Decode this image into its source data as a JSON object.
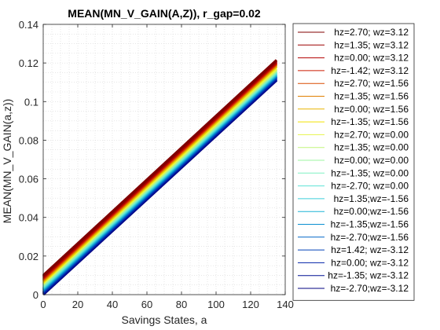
{
  "chart_data": {
    "type": "line",
    "title": "MEAN(MN_V_GAIN(A,Z)), r_gap=0.02",
    "xlabel": "Savings States, a",
    "ylabel": "MEAN(MN_V_GAIN(a,z))",
    "xlim": [
      0,
      140
    ],
    "ylim": [
      0,
      0.14
    ],
    "xticks": [
      "0",
      "20",
      "40",
      "60",
      "80",
      "100",
      "120",
      "140"
    ],
    "yticks": [
      "0",
      "0.02",
      "0.04",
      "0.06",
      "0.08",
      "0.1",
      "0.12",
      "0.14"
    ],
    "grid": "minor-dotted",
    "legend_position": "outside-right",
    "x_range": [
      0,
      135
    ],
    "series": [
      {
        "name": "hz=2.70; wz=3.12",
        "color": "#800000",
        "values": [
          0.01,
          0.1215
        ]
      },
      {
        "name": "hz=1.35; wz=3.12",
        "color": "#9c0000",
        "values": [
          0.0095,
          0.121
        ]
      },
      {
        "name": "hz=0.00; wz=3.12",
        "color": "#b30000",
        "values": [
          0.009,
          0.1205
        ]
      },
      {
        "name": "hz=-1.42; wz=3.12",
        "color": "#cc1a00",
        "values": [
          0.0085,
          0.12
        ]
      },
      {
        "name": "hz=2.70; wz=1.56",
        "color": "#d94a00",
        "values": [
          0.008,
          0.1195
        ]
      },
      {
        "name": "hz=1.35; wz=1.56",
        "color": "#e07f00",
        "values": [
          0.0075,
          0.119
        ]
      },
      {
        "name": "hz=0.00; wz=1.56",
        "color": "#e8b400",
        "values": [
          0.007,
          0.1185
        ]
      },
      {
        "name": "hz=-1.35; wz=1.56",
        "color": "#f0e000",
        "values": [
          0.0065,
          0.118
        ]
      },
      {
        "name": "hz=2.70; wz=0.00",
        "color": "#e6f54a",
        "values": [
          0.006,
          0.117
        ]
      },
      {
        "name": "hz=1.35; wz=0.00",
        "color": "#c2f57a",
        "values": [
          0.0055,
          0.1165
        ]
      },
      {
        "name": "hz=0.00; wz=0.00",
        "color": "#9ef5a0",
        "values": [
          0.005,
          0.116
        ]
      },
      {
        "name": "hz=-1.35; wz=0.00",
        "color": "#7ef0c2",
        "values": [
          0.0045,
          0.1155
        ]
      },
      {
        "name": "hz=-2.70; wz=0.00",
        "color": "#5ee3d6",
        "values": [
          0.004,
          0.115
        ]
      },
      {
        "name": "hz=1.35;wz=-1.56",
        "color": "#3ccfd9",
        "values": [
          0.0035,
          0.1145
        ]
      },
      {
        "name": "hz=0.00;wz=-1.56",
        "color": "#1fb4d6",
        "values": [
          0.003,
          0.114
        ]
      },
      {
        "name": "hz=-1.35;wz=-1.56",
        "color": "#0a8fd0",
        "values": [
          0.0025,
          0.1135
        ]
      },
      {
        "name": "hz=-2.70;wz=-1.56",
        "color": "#0066c7",
        "values": [
          0.002,
          0.113
        ]
      },
      {
        "name": "hz=1.42; wz=-3.12",
        "color": "#0040b8",
        "values": [
          0.0015,
          0.1125
        ]
      },
      {
        "name": "hz=0.00; wz=-3.12",
        "color": "#0020a8",
        "values": [
          0.001,
          0.112
        ]
      },
      {
        "name": "hz=-1.35; wz=-3.12",
        "color": "#001094",
        "values": [
          0.0005,
          0.1115
        ]
      },
      {
        "name": "hz=-2.70;wz=-3.12",
        "color": "#000080",
        "values": [
          0.0,
          0.111
        ]
      }
    ],
    "overlay_lines_note_free": true
  }
}
